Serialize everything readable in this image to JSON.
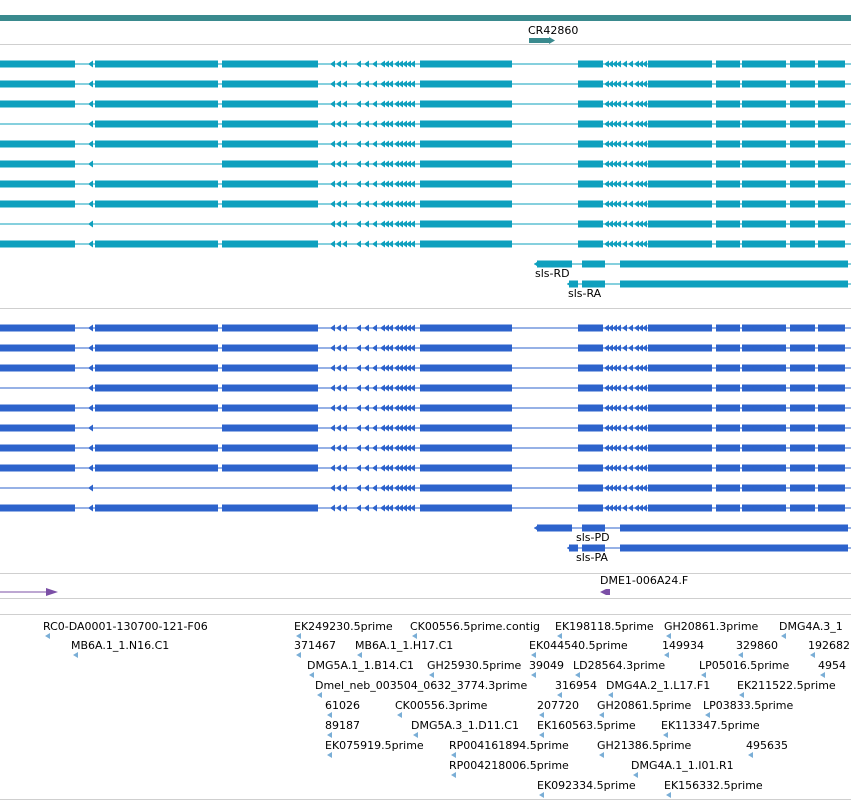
{
  "tracks": {
    "top_gene": {
      "label": "CR42860",
      "color": "#3a8a8e"
    },
    "transcripts_a": {
      "color": "#0ea0be",
      "labels": [
        "sls-RD",
        "sls-RA"
      ],
      "row_count": 10
    },
    "transcripts_b": {
      "color": "#2d63cc",
      "labels": [
        "sls-PD",
        "sls-PA"
      ],
      "row_count": 10
    },
    "marker_track": {
      "color": "#7b4fa6",
      "label": "DME1-006A24.F"
    },
    "est_track": {
      "color": "#7aaed6",
      "labels": [
        "RC0-DA0001-130700-121-F06",
        "MB6A.1_1.N16.C1",
        "EK249230.5prime",
        "CK00556.5prime.contig",
        "EK198118.5prime",
        "GH20861.3prime",
        "DMG4A.3_1",
        "371467",
        "MB6A.1_1.H17.C1",
        "EK044540.5prime",
        "149934",
        "329860",
        "192682",
        "DMG5A.1_1.B14.C1",
        "GH25930.5prime",
        "39049",
        "LD28564.3prime",
        "LP05016.5prime",
        "4954",
        "Dmel_neb_003504_0632_3774.3prime",
        "316954",
        "DMG4A.2_1.L17.F1",
        "EK211522.5prime",
        "61026",
        "CK00556.3prime",
        "207720",
        "GH20861.5prime",
        "LP03833.5prime",
        "89187",
        "DMG5A.3_1.D11.C1",
        "EK160563.5prime",
        "EK113347.5prime",
        "EK075919.5prime",
        "RP004161894.5prime",
        "GH21386.5prime",
        "495635",
        "RP004218006.5prime",
        "DMG4A.1_1.I01.R1",
        "EK092334.5prime",
        "EK156332.5prime"
      ]
    }
  }
}
